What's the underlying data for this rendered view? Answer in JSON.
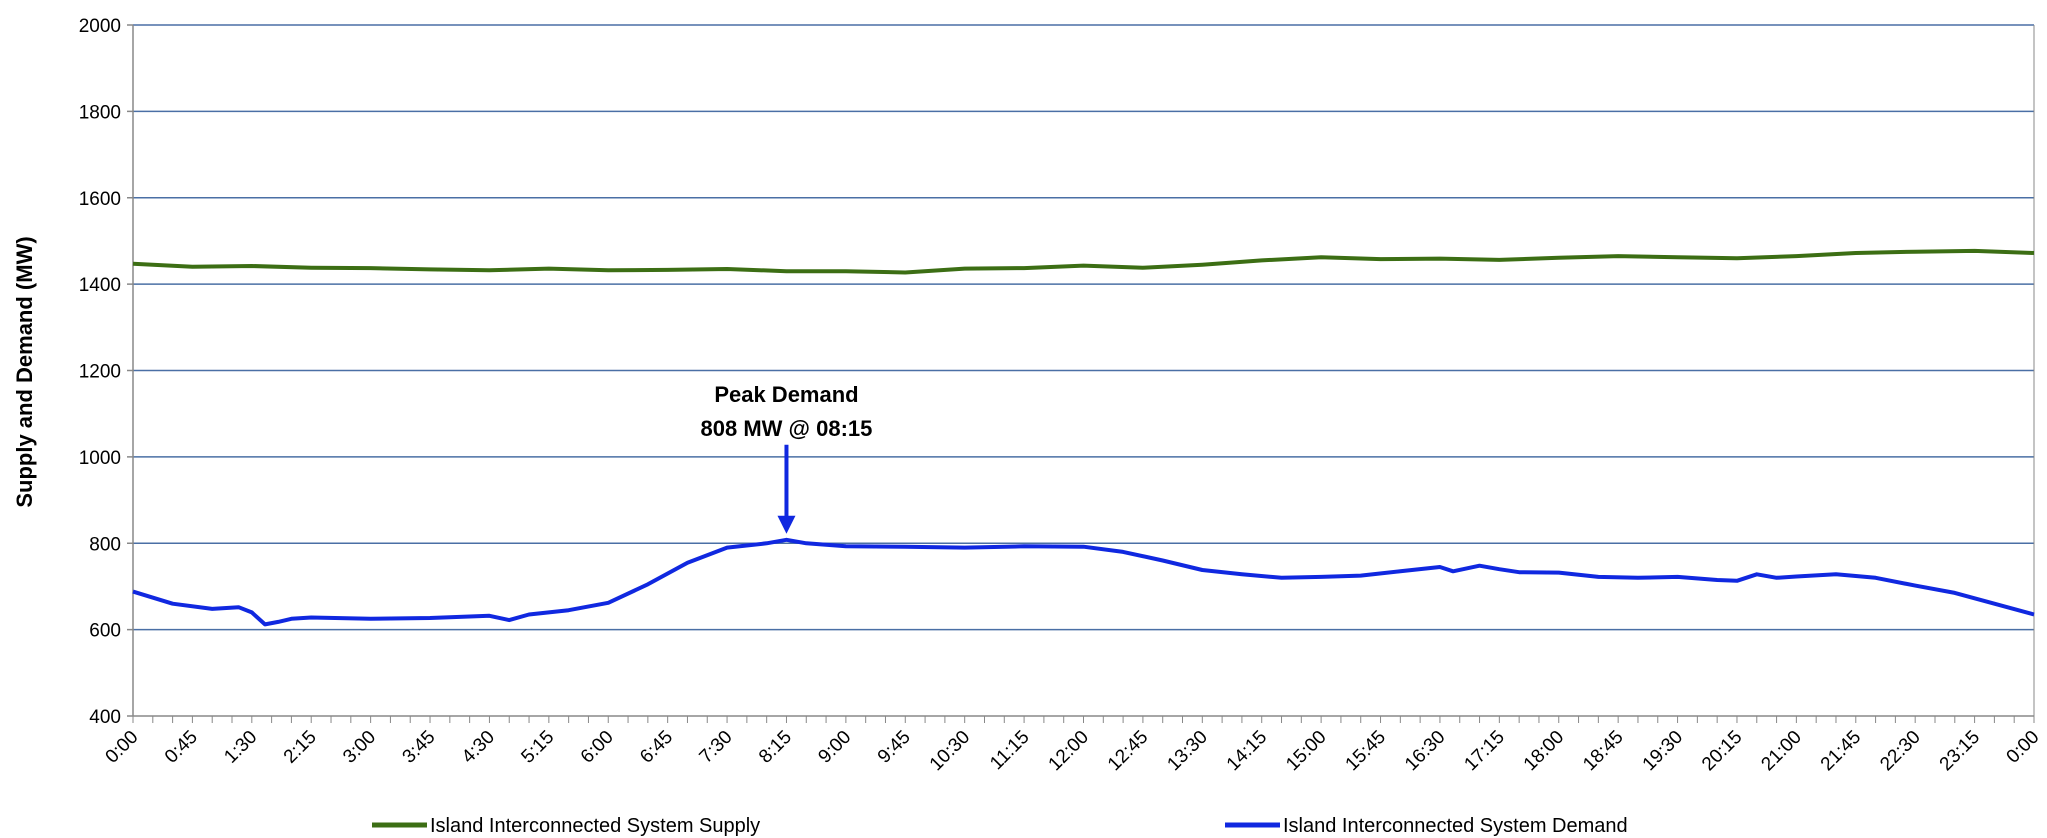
{
  "chart_data": {
    "type": "line",
    "ylabel": "Supply and Demand (MW)",
    "ylim": [
      400,
      2000
    ],
    "yticks": [
      400,
      600,
      800,
      1000,
      1200,
      1400,
      1600,
      1800,
      2000
    ],
    "grid": "horizontal",
    "legend_position": "bottom",
    "x_tick_labels": [
      "0:00",
      "0:45",
      "1:30",
      "2:15",
      "3:00",
      "3:45",
      "4:30",
      "5:15",
      "6:00",
      "6:45",
      "7:30",
      "8:15",
      "9:00",
      "9:45",
      "10:30",
      "11:15",
      "12:00",
      "12:45",
      "13:30",
      "14:15",
      "15:00",
      "15:45",
      "16:30",
      "17:15",
      "18:00",
      "18:45",
      "19:30",
      "20:15",
      "21:00",
      "21:45",
      "22:30",
      "23:15",
      "0:00"
    ],
    "x_tick_interval_minutes": 45,
    "x_range_minutes": [
      0,
      1440
    ],
    "series": [
      {
        "name": "Island Interconnected System Supply",
        "color": "#3c6e14",
        "x_minutes": [
          0,
          45,
          90,
          135,
          180,
          225,
          270,
          315,
          360,
          405,
          450,
          495,
          540,
          585,
          630,
          675,
          720,
          765,
          810,
          855,
          900,
          945,
          990,
          1035,
          1080,
          1125,
          1170,
          1215,
          1260,
          1305,
          1350,
          1395,
          1440
        ],
        "values": [
          1447,
          1440,
          1442,
          1438,
          1437,
          1434,
          1432,
          1436,
          1432,
          1433,
          1435,
          1430,
          1430,
          1427,
          1436,
          1437,
          1443,
          1438,
          1445,
          1455,
          1462,
          1458,
          1459,
          1456,
          1461,
          1465,
          1462,
          1460,
          1465,
          1472,
          1475,
          1477,
          1472
        ]
      },
      {
        "name": "Island Interconnected System Demand",
        "color": "#1028e0",
        "x_minutes": [
          0,
          30,
          60,
          80,
          90,
          100,
          110,
          120,
          135,
          180,
          225,
          270,
          285,
          300,
          330,
          360,
          390,
          420,
          450,
          480,
          495,
          510,
          540,
          585,
          630,
          675,
          720,
          750,
          780,
          810,
          840,
          870,
          900,
          930,
          960,
          990,
          1000,
          1020,
          1035,
          1050,
          1080,
          1110,
          1140,
          1170,
          1200,
          1215,
          1230,
          1245,
          1260,
          1290,
          1320,
          1350,
          1380,
          1410,
          1440
        ],
        "values": [
          688,
          660,
          648,
          652,
          640,
          612,
          618,
          625,
          628,
          625,
          627,
          632,
          622,
          635,
          645,
          662,
          705,
          755,
          790,
          800,
          808,
          800,
          793,
          792,
          790,
          793,
          792,
          780,
          760,
          738,
          728,
          720,
          722,
          725,
          735,
          745,
          735,
          748,
          740,
          733,
          732,
          722,
          720,
          722,
          715,
          713,
          728,
          720,
          723,
          728,
          720,
          702,
          685,
          660,
          635
        ]
      }
    ],
    "annotations": [
      {
        "text_line1": "Peak Demand",
        "text_line2": "808 MW @ 08:15",
        "x_minutes": 495,
        "y": 808
      }
    ]
  }
}
